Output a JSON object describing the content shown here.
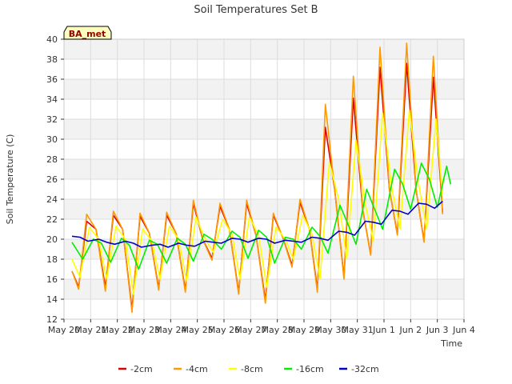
{
  "chart_data": {
    "type": "line",
    "title": "Soil Temperatures Set B",
    "xlabel": "Time",
    "ylabel": "Soil Temperature (C)",
    "site_label": "BA_met",
    "ylim": [
      12,
      40
    ],
    "yticks": [
      12,
      14,
      16,
      18,
      20,
      22,
      24,
      26,
      28,
      30,
      32,
      34,
      36,
      38,
      40
    ],
    "xlim": [
      0,
      15
    ],
    "xticks": [
      {
        "x": 0,
        "label": "May 20"
      },
      {
        "x": 1,
        "label": "May 21"
      },
      {
        "x": 2,
        "label": "May 22"
      },
      {
        "x": 3,
        "label": "May 23"
      },
      {
        "x": 4,
        "label": "May 24"
      },
      {
        "x": 5,
        "label": "May 25"
      },
      {
        "x": 6,
        "label": "May 26"
      },
      {
        "x": 7,
        "label": "May 27"
      },
      {
        "x": 8,
        "label": "May 28"
      },
      {
        "x": 9,
        "label": "May 29"
      },
      {
        "x": 10,
        "label": "May 30"
      },
      {
        "x": 11,
        "label": "May 31"
      },
      {
        "x": 12,
        "label": "Jun 1"
      },
      {
        "x": 13,
        "label": "Jun 2"
      },
      {
        "x": 14,
        "label": "Jun 3"
      },
      {
        "x": 15,
        "label": "Jun 4"
      }
    ],
    "grid": true,
    "legend_position": "bottom",
    "series": [
      {
        "name": "-2cm",
        "color": "#dd0000",
        "points": [
          [
            0.3,
            16.8
          ],
          [
            0.55,
            15.2
          ],
          [
            0.85,
            21.8
          ],
          [
            1.2,
            21.0
          ],
          [
            1.55,
            15.2
          ],
          [
            1.85,
            22.4
          ],
          [
            2.2,
            21.0
          ],
          [
            2.55,
            13.0
          ],
          [
            2.85,
            22.3
          ],
          [
            3.2,
            20.6
          ],
          [
            3.55,
            15.1
          ],
          [
            3.85,
            22.4
          ],
          [
            4.2,
            20.6
          ],
          [
            4.55,
            14.9
          ],
          [
            4.85,
            23.6
          ],
          [
            5.2,
            20.0
          ],
          [
            5.55,
            18.1
          ],
          [
            5.85,
            23.3
          ],
          [
            6.2,
            21.0
          ],
          [
            6.55,
            14.7
          ],
          [
            6.85,
            23.6
          ],
          [
            7.2,
            20.4
          ],
          [
            7.55,
            13.9
          ],
          [
            7.85,
            22.4
          ],
          [
            8.2,
            20.2
          ],
          [
            8.55,
            17.4
          ],
          [
            8.85,
            23.7
          ],
          [
            9.2,
            21.0
          ],
          [
            9.5,
            15.0
          ],
          [
            9.8,
            31.2
          ],
          [
            10.15,
            25.0
          ],
          [
            10.5,
            16.2
          ],
          [
            10.85,
            34.1
          ],
          [
            11.2,
            23.0
          ],
          [
            11.5,
            18.5
          ],
          [
            11.85,
            37.2
          ],
          [
            12.2,
            25.0
          ],
          [
            12.5,
            20.5
          ],
          [
            12.85,
            37.6
          ],
          [
            13.2,
            25.0
          ],
          [
            13.5,
            19.8
          ],
          [
            13.85,
            36.2
          ],
          [
            14.2,
            22.6
          ]
        ]
      },
      {
        "name": "-4cm",
        "color": "#ff9900",
        "points": [
          [
            0.3,
            16.8
          ],
          [
            0.55,
            15.0
          ],
          [
            0.85,
            22.5
          ],
          [
            1.2,
            21.0
          ],
          [
            1.55,
            14.8
          ],
          [
            1.85,
            22.8
          ],
          [
            2.2,
            21.0
          ],
          [
            2.55,
            12.7
          ],
          [
            2.85,
            22.6
          ],
          [
            3.2,
            20.6
          ],
          [
            3.55,
            14.9
          ],
          [
            3.85,
            22.7
          ],
          [
            4.2,
            20.6
          ],
          [
            4.55,
            14.7
          ],
          [
            4.85,
            23.9
          ],
          [
            5.2,
            20.0
          ],
          [
            5.55,
            17.9
          ],
          [
            5.85,
            23.6
          ],
          [
            6.2,
            21.0
          ],
          [
            6.55,
            14.5
          ],
          [
            6.85,
            23.9
          ],
          [
            7.2,
            20.4
          ],
          [
            7.55,
            13.6
          ],
          [
            7.85,
            22.6
          ],
          [
            8.2,
            20.2
          ],
          [
            8.55,
            17.2
          ],
          [
            8.85,
            24.0
          ],
          [
            9.2,
            21.0
          ],
          [
            9.5,
            14.7
          ],
          [
            9.8,
            33.5
          ],
          [
            10.15,
            25.0
          ],
          [
            10.5,
            16.0
          ],
          [
            10.85,
            36.3
          ],
          [
            11.2,
            23.0
          ],
          [
            11.5,
            18.4
          ],
          [
            11.85,
            39.2
          ],
          [
            12.2,
            25.0
          ],
          [
            12.5,
            20.4
          ],
          [
            12.85,
            39.6
          ],
          [
            13.2,
            25.0
          ],
          [
            13.5,
            19.7
          ],
          [
            13.85,
            38.3
          ],
          [
            14.2,
            22.5
          ]
        ]
      },
      {
        "name": "-8cm",
        "color": "#ffff00",
        "points": [
          [
            0.3,
            18.0
          ],
          [
            0.6,
            16.2
          ],
          [
            0.95,
            21.2
          ],
          [
            1.3,
            20.0
          ],
          [
            1.6,
            16.0
          ],
          [
            1.95,
            21.3
          ],
          [
            2.3,
            20.0
          ],
          [
            2.6,
            14.5
          ],
          [
            2.95,
            21.0
          ],
          [
            3.3,
            19.8
          ],
          [
            3.6,
            16.0
          ],
          [
            3.95,
            21.3
          ],
          [
            4.3,
            20.0
          ],
          [
            4.6,
            15.8
          ],
          [
            4.95,
            22.2
          ],
          [
            5.3,
            20.0
          ],
          [
            5.6,
            18.7
          ],
          [
            5.95,
            22.0
          ],
          [
            6.3,
            20.5
          ],
          [
            6.6,
            16.0
          ],
          [
            6.95,
            22.2
          ],
          [
            7.3,
            20.4
          ],
          [
            7.6,
            15.2
          ],
          [
            7.95,
            21.2
          ],
          [
            8.3,
            20.0
          ],
          [
            8.6,
            18.0
          ],
          [
            8.95,
            22.4
          ],
          [
            9.3,
            20.5
          ],
          [
            9.6,
            16.0
          ],
          [
            9.95,
            27.7
          ],
          [
            10.3,
            24.0
          ],
          [
            10.6,
            18.0
          ],
          [
            10.95,
            29.9
          ],
          [
            11.3,
            23.5
          ],
          [
            11.6,
            19.8
          ],
          [
            11.95,
            32.6
          ],
          [
            12.3,
            25.0
          ],
          [
            12.6,
            21.0
          ],
          [
            12.95,
            32.9
          ],
          [
            13.3,
            25.5
          ],
          [
            13.6,
            21.0
          ],
          [
            13.95,
            32.0
          ],
          [
            14.2,
            24.5
          ]
        ]
      },
      {
        "name": "-16cm",
        "color": "#00ee00",
        "points": [
          [
            0.3,
            19.7
          ],
          [
            0.7,
            18.0
          ],
          [
            1.1,
            20.0
          ],
          [
            1.4,
            19.6
          ],
          [
            1.75,
            17.7
          ],
          [
            2.15,
            20.1
          ],
          [
            2.45,
            19.4
          ],
          [
            2.8,
            17.0
          ],
          [
            3.2,
            19.9
          ],
          [
            3.5,
            19.5
          ],
          [
            3.85,
            17.6
          ],
          [
            4.25,
            20.1
          ],
          [
            4.55,
            19.5
          ],
          [
            4.85,
            17.8
          ],
          [
            5.25,
            20.5
          ],
          [
            5.55,
            20.0
          ],
          [
            5.9,
            19.0
          ],
          [
            6.3,
            20.8
          ],
          [
            6.6,
            20.2
          ],
          [
            6.9,
            18.1
          ],
          [
            7.3,
            20.9
          ],
          [
            7.6,
            20.2
          ],
          [
            7.9,
            17.6
          ],
          [
            8.3,
            20.2
          ],
          [
            8.6,
            20.0
          ],
          [
            8.9,
            19.0
          ],
          [
            9.3,
            21.2
          ],
          [
            9.6,
            20.3
          ],
          [
            9.9,
            18.6
          ],
          [
            10.35,
            23.4
          ],
          [
            10.65,
            21.5
          ],
          [
            10.95,
            19.5
          ],
          [
            11.35,
            25.0
          ],
          [
            11.65,
            23.0
          ],
          [
            11.95,
            21.0
          ],
          [
            12.4,
            27.0
          ],
          [
            12.7,
            25.5
          ],
          [
            13.0,
            23.0
          ],
          [
            13.4,
            27.6
          ],
          [
            13.7,
            26.0
          ],
          [
            14.0,
            23.2
          ],
          [
            14.35,
            27.3
          ],
          [
            14.5,
            25.5
          ]
        ]
      },
      {
        "name": "-32cm",
        "color": "#0000cc",
        "points": [
          [
            0.3,
            20.3
          ],
          [
            0.6,
            20.2
          ],
          [
            0.9,
            19.8
          ],
          [
            1.3,
            20.0
          ],
          [
            1.6,
            19.7
          ],
          [
            1.9,
            19.5
          ],
          [
            2.3,
            19.8
          ],
          [
            2.6,
            19.6
          ],
          [
            2.9,
            19.2
          ],
          [
            3.3,
            19.4
          ],
          [
            3.6,
            19.5
          ],
          [
            3.9,
            19.2
          ],
          [
            4.3,
            19.6
          ],
          [
            4.6,
            19.4
          ],
          [
            4.9,
            19.3
          ],
          [
            5.3,
            19.8
          ],
          [
            5.6,
            19.7
          ],
          [
            5.9,
            19.6
          ],
          [
            6.3,
            20.1
          ],
          [
            6.6,
            20.0
          ],
          [
            6.9,
            19.7
          ],
          [
            7.3,
            20.1
          ],
          [
            7.6,
            20.0
          ],
          [
            7.9,
            19.6
          ],
          [
            8.3,
            19.9
          ],
          [
            8.6,
            19.8
          ],
          [
            8.9,
            19.7
          ],
          [
            9.3,
            20.2
          ],
          [
            9.6,
            20.1
          ],
          [
            9.9,
            19.9
          ],
          [
            10.3,
            20.8
          ],
          [
            10.6,
            20.7
          ],
          [
            10.9,
            20.4
          ],
          [
            11.3,
            21.8
          ],
          [
            11.6,
            21.7
          ],
          [
            11.9,
            21.5
          ],
          [
            12.3,
            22.9
          ],
          [
            12.6,
            22.8
          ],
          [
            12.9,
            22.5
          ],
          [
            13.3,
            23.6
          ],
          [
            13.6,
            23.5
          ],
          [
            13.9,
            23.1
          ],
          [
            14.2,
            23.8
          ]
        ]
      }
    ]
  }
}
